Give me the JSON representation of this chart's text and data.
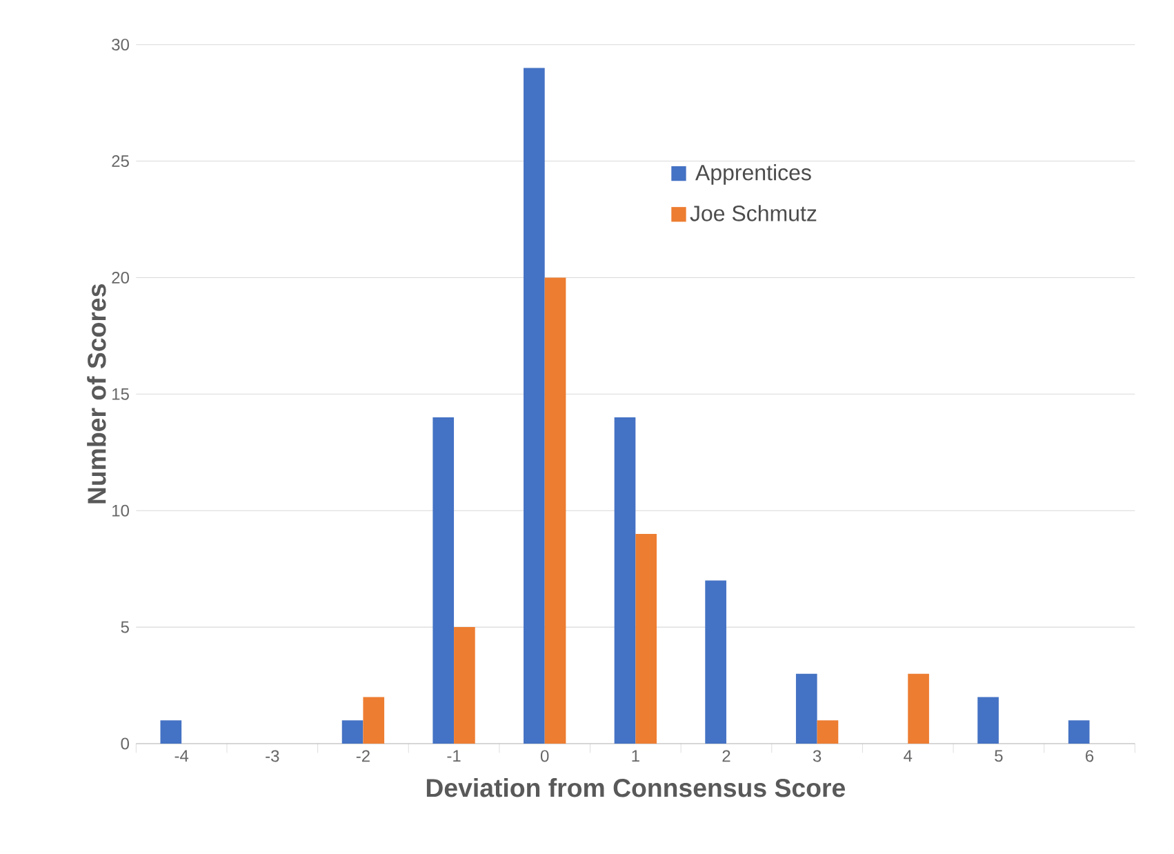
{
  "chart_data": {
    "type": "bar",
    "xlabel": "Deviation from Connsensus Score",
    "ylabel": "Number of Scores",
    "categories": [
      "-4",
      "-3",
      "-2",
      "-1",
      "0",
      "1",
      "2",
      "3",
      "4",
      "5",
      "6"
    ],
    "series": [
      {
        "name": "Apprentices",
        "color": "#4472c4",
        "values": [
          1,
          0,
          1,
          14,
          29,
          14,
          7,
          3,
          0,
          2,
          1
        ]
      },
      {
        "name": "Joe Schmutz",
        "color": "#ed7d31",
        "values": [
          0,
          0,
          2,
          5,
          20,
          9,
          0,
          1,
          3,
          0,
          0
        ]
      }
    ],
    "ylim": [
      0,
      30
    ],
    "yticks": [
      0,
      5,
      10,
      15,
      20,
      25,
      30
    ],
    "grid": "y",
    "legend": "top right"
  }
}
